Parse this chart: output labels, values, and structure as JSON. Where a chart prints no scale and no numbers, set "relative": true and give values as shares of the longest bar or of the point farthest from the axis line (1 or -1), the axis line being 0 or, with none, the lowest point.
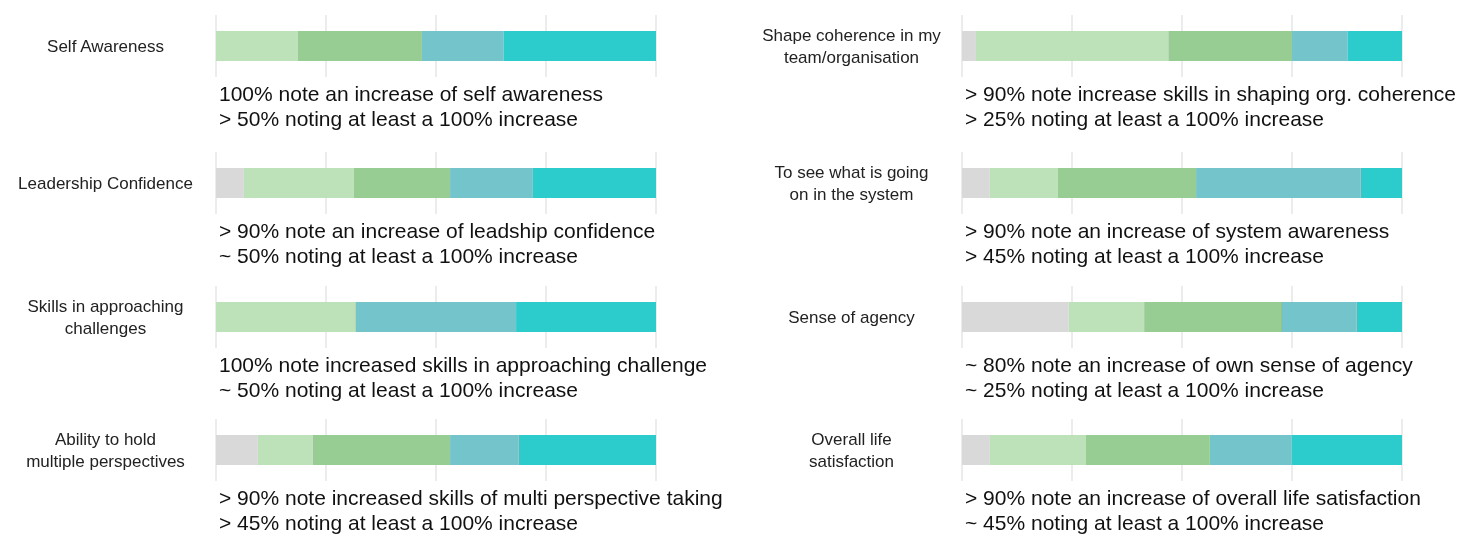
{
  "chart_data": [
    {
      "type": "bar",
      "orientation": "horizontal",
      "stacked": true,
      "relative": true,
      "grid": "x",
      "categories": [
        "Self Awareness"
      ],
      "series": [
        {
          "color": "#d9d9d9",
          "values": [
            0
          ]
        },
        {
          "color": "#bde2b9",
          "values": [
            0.186
          ]
        },
        {
          "color": "#97cd93",
          "values": [
            0.282
          ]
        },
        {
          "color": "#74c4cb",
          "values": [
            0.186
          ]
        },
        {
          "color": "#2dcccc",
          "values": [
            0.346
          ]
        }
      ],
      "annotations": [
        "100% note an increase of self awareness",
        "> 50% noting at least a 100% increase"
      ]
    },
    {
      "type": "bar",
      "orientation": "horizontal",
      "stacked": true,
      "relative": true,
      "grid": "x",
      "categories": [
        "Shape coherence in my team/organisation"
      ],
      "series": [
        {
          "color": "#d9d9d9",
          "values": [
            0.03
          ]
        },
        {
          "color": "#bde2b9",
          "values": [
            0.439
          ]
        },
        {
          "color": "#97cd93",
          "values": [
            0.281
          ]
        },
        {
          "color": "#74c4cb",
          "values": [
            0.126
          ]
        },
        {
          "color": "#2dcccc",
          "values": [
            0.124
          ]
        }
      ],
      "annotations": [
        "> 90% note increase skills in shaping org. coherence",
        "> 25% noting at least a 100% increase"
      ]
    },
    {
      "type": "bar",
      "orientation": "horizontal",
      "stacked": true,
      "relative": true,
      "grid": "x",
      "categories": [
        "Leadership Confidence"
      ],
      "series": [
        {
          "color": "#d9d9d9",
          "values": [
            0.062
          ]
        },
        {
          "color": "#bde2b9",
          "values": [
            0.251
          ]
        },
        {
          "color": "#97cd93",
          "values": [
            0.219
          ]
        },
        {
          "color": "#74c4cb",
          "values": [
            0.187
          ]
        },
        {
          "color": "#2dcccc",
          "values": [
            0.281
          ]
        }
      ],
      "annotations": [
        "> 90% note an increase of leadship confidence",
        "~ 50% noting at least a 100% increase"
      ]
    },
    {
      "type": "bar",
      "orientation": "horizontal",
      "stacked": true,
      "relative": true,
      "grid": "x",
      "categories": [
        "To see what is going on in the system"
      ],
      "series": [
        {
          "color": "#d9d9d9",
          "values": [
            0.063
          ]
        },
        {
          "color": "#bde2b9",
          "values": [
            0.155
          ]
        },
        {
          "color": "#97cd93",
          "values": [
            0.314
          ]
        },
        {
          "color": "#74c4cb",
          "values": [
            0.374
          ]
        },
        {
          "color": "#2dcccc",
          "values": [
            0.094
          ]
        }
      ],
      "annotations": [
        "> 90% note an increase of system awareness",
        "> 45% noting at least a 100% increase"
      ]
    },
    {
      "type": "bar",
      "orientation": "horizontal",
      "stacked": true,
      "relative": true,
      "grid": "x",
      "categories": [
        "Skills in approaching challenges"
      ],
      "series": [
        {
          "color": "#d9d9d9",
          "values": [
            0
          ]
        },
        {
          "color": "#bde2b9",
          "values": [
            0.317
          ]
        },
        {
          "color": "#97cd93",
          "values": [
            0
          ]
        },
        {
          "color": "#74c4cb",
          "values": [
            0.365
          ]
        },
        {
          "color": "#2dcccc",
          "values": [
            0.318
          ]
        }
      ],
      "annotations": [
        "100% note increased skills in approaching challenge",
        "~ 50% noting at least a 100% increase"
      ]
    },
    {
      "type": "bar",
      "orientation": "horizontal",
      "stacked": true,
      "relative": true,
      "grid": "x",
      "categories": [
        "Sense of agency"
      ],
      "series": [
        {
          "color": "#d9d9d9",
          "values": [
            0.242
          ]
        },
        {
          "color": "#bde2b9",
          "values": [
            0.172
          ]
        },
        {
          "color": "#97cd93",
          "values": [
            0.311
          ]
        },
        {
          "color": "#74c4cb",
          "values": [
            0.172
          ]
        },
        {
          "color": "#2dcccc",
          "values": [
            0.103
          ]
        }
      ],
      "annotations": [
        "~ 80% note an increase of own sense of agency",
        "~ 25% noting at least a 100% increase"
      ]
    },
    {
      "type": "bar",
      "orientation": "horizontal",
      "stacked": true,
      "relative": true,
      "grid": "x",
      "categories": [
        "Ability to hold multiple perspectives"
      ],
      "series": [
        {
          "color": "#d9d9d9",
          "values": [
            0.094
          ]
        },
        {
          "color": "#bde2b9",
          "values": [
            0.126
          ]
        },
        {
          "color": "#97cd93",
          "values": [
            0.312
          ]
        },
        {
          "color": "#74c4cb",
          "values": [
            0.156
          ]
        },
        {
          "color": "#2dcccc",
          "values": [
            0.312
          ]
        }
      ],
      "annotations": [
        "> 90% note increased skills of multi perspective taking",
        "> 45% noting at least a 100% increase"
      ]
    },
    {
      "type": "bar",
      "orientation": "horizontal",
      "stacked": true,
      "relative": true,
      "grid": "x",
      "categories": [
        "Overall life satisfaction"
      ],
      "series": [
        {
          "color": "#d9d9d9",
          "values": [
            0.062
          ]
        },
        {
          "color": "#bde2b9",
          "values": [
            0.219
          ]
        },
        {
          "color": "#97cd93",
          "values": [
            0.281
          ]
        },
        {
          "color": "#74c4cb",
          "values": [
            0.187
          ]
        },
        {
          "color": "#2dcccc",
          "values": [
            0.251
          ]
        }
      ],
      "annotations": [
        "> 90% note an increase of overall life satisfaction",
        "~ 45% noting at least a 100% increase"
      ]
    }
  ]
}
